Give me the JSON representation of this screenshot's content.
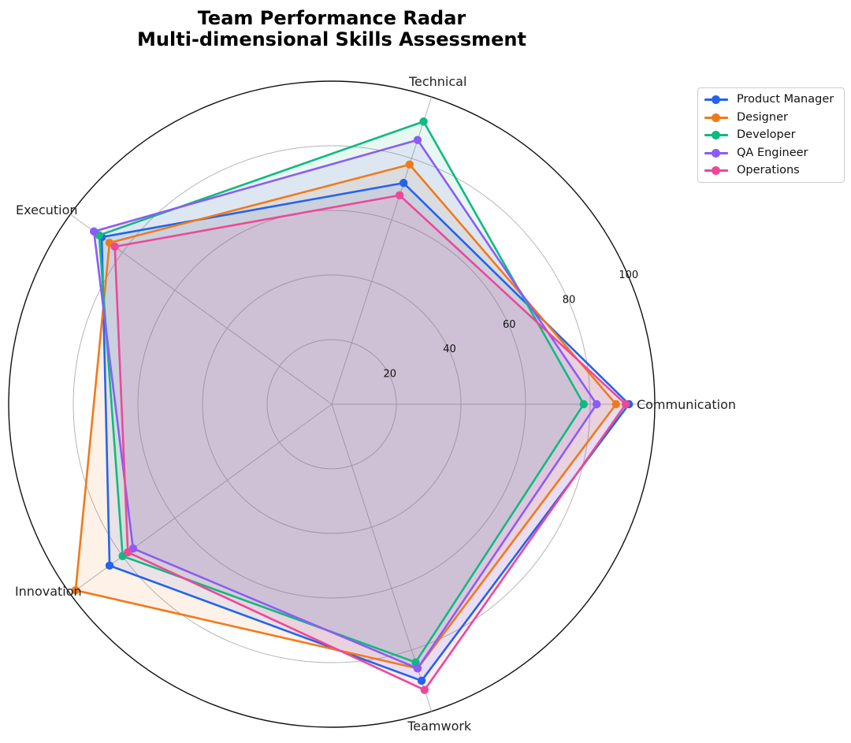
{
  "chart_data": {
    "type": "radar",
    "title": "Team Performance Radar",
    "subtitle": "Multi-dimensional Skills Assessment",
    "axes": [
      "Communication",
      "Technical",
      "Execution",
      "Innovation",
      "Teamwork"
    ],
    "rlim": [
      0,
      100
    ],
    "rticks": [
      20,
      40,
      60,
      80,
      100
    ],
    "grid": true,
    "legend_position": "top-right",
    "series": [
      {
        "name": "Product Manager",
        "color": "#2563eb",
        "values": [
          92,
          72,
          88,
          85,
          90
        ]
      },
      {
        "name": "Designer",
        "color": "#f07a1a",
        "values": [
          88,
          78,
          85,
          98,
          86
        ]
      },
      {
        "name": "Developer",
        "color": "#10b981",
        "values": [
          78,
          92,
          89,
          80,
          84
        ]
      },
      {
        "name": "QA Engineer",
        "color": "#8b5cf6",
        "values": [
          82,
          86,
          91,
          76,
          86
        ]
      },
      {
        "name": "Operations",
        "color": "#ec4899",
        "values": [
          91,
          68,
          83,
          78,
          93
        ]
      }
    ]
  }
}
